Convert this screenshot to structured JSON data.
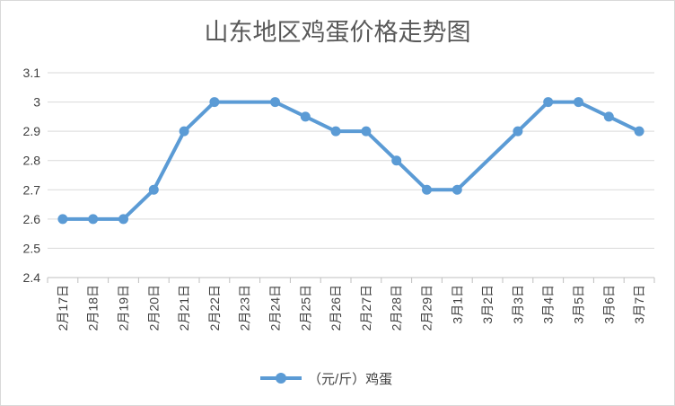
{
  "chart_data": {
    "type": "line",
    "title": "山东地区鸡蛋价格走势图",
    "categories": [
      "2月17日",
      "2月18日",
      "2月19日",
      "2月20日",
      "2月21日",
      "2月22日",
      "2月23日",
      "2月24日",
      "2月25日",
      "2月26日",
      "2月27日",
      "2月28日",
      "2月29日",
      "3月1日",
      "3月2日",
      "3月3日",
      "3月4日",
      "3月5日",
      "3月6日",
      "3月7日"
    ],
    "series": [
      {
        "name": "（元/斤）鸡蛋",
        "color": "#5b9bd5",
        "values": [
          2.6,
          2.6,
          2.6,
          2.7,
          2.9,
          3.0,
          null,
          3.0,
          2.95,
          2.9,
          2.9,
          2.8,
          2.7,
          2.7,
          null,
          2.9,
          3.0,
          3.0,
          2.95,
          2.9
        ]
      }
    ],
    "yticks": [
      "2.4",
      "2.5",
      "2.6",
      "2.7",
      "2.8",
      "2.9",
      "3",
      "3.1"
    ],
    "ylim": [
      2.4,
      3.1
    ],
    "grid": true,
    "legend_position": "bottom",
    "gridline_color": "#d9d9d9"
  }
}
